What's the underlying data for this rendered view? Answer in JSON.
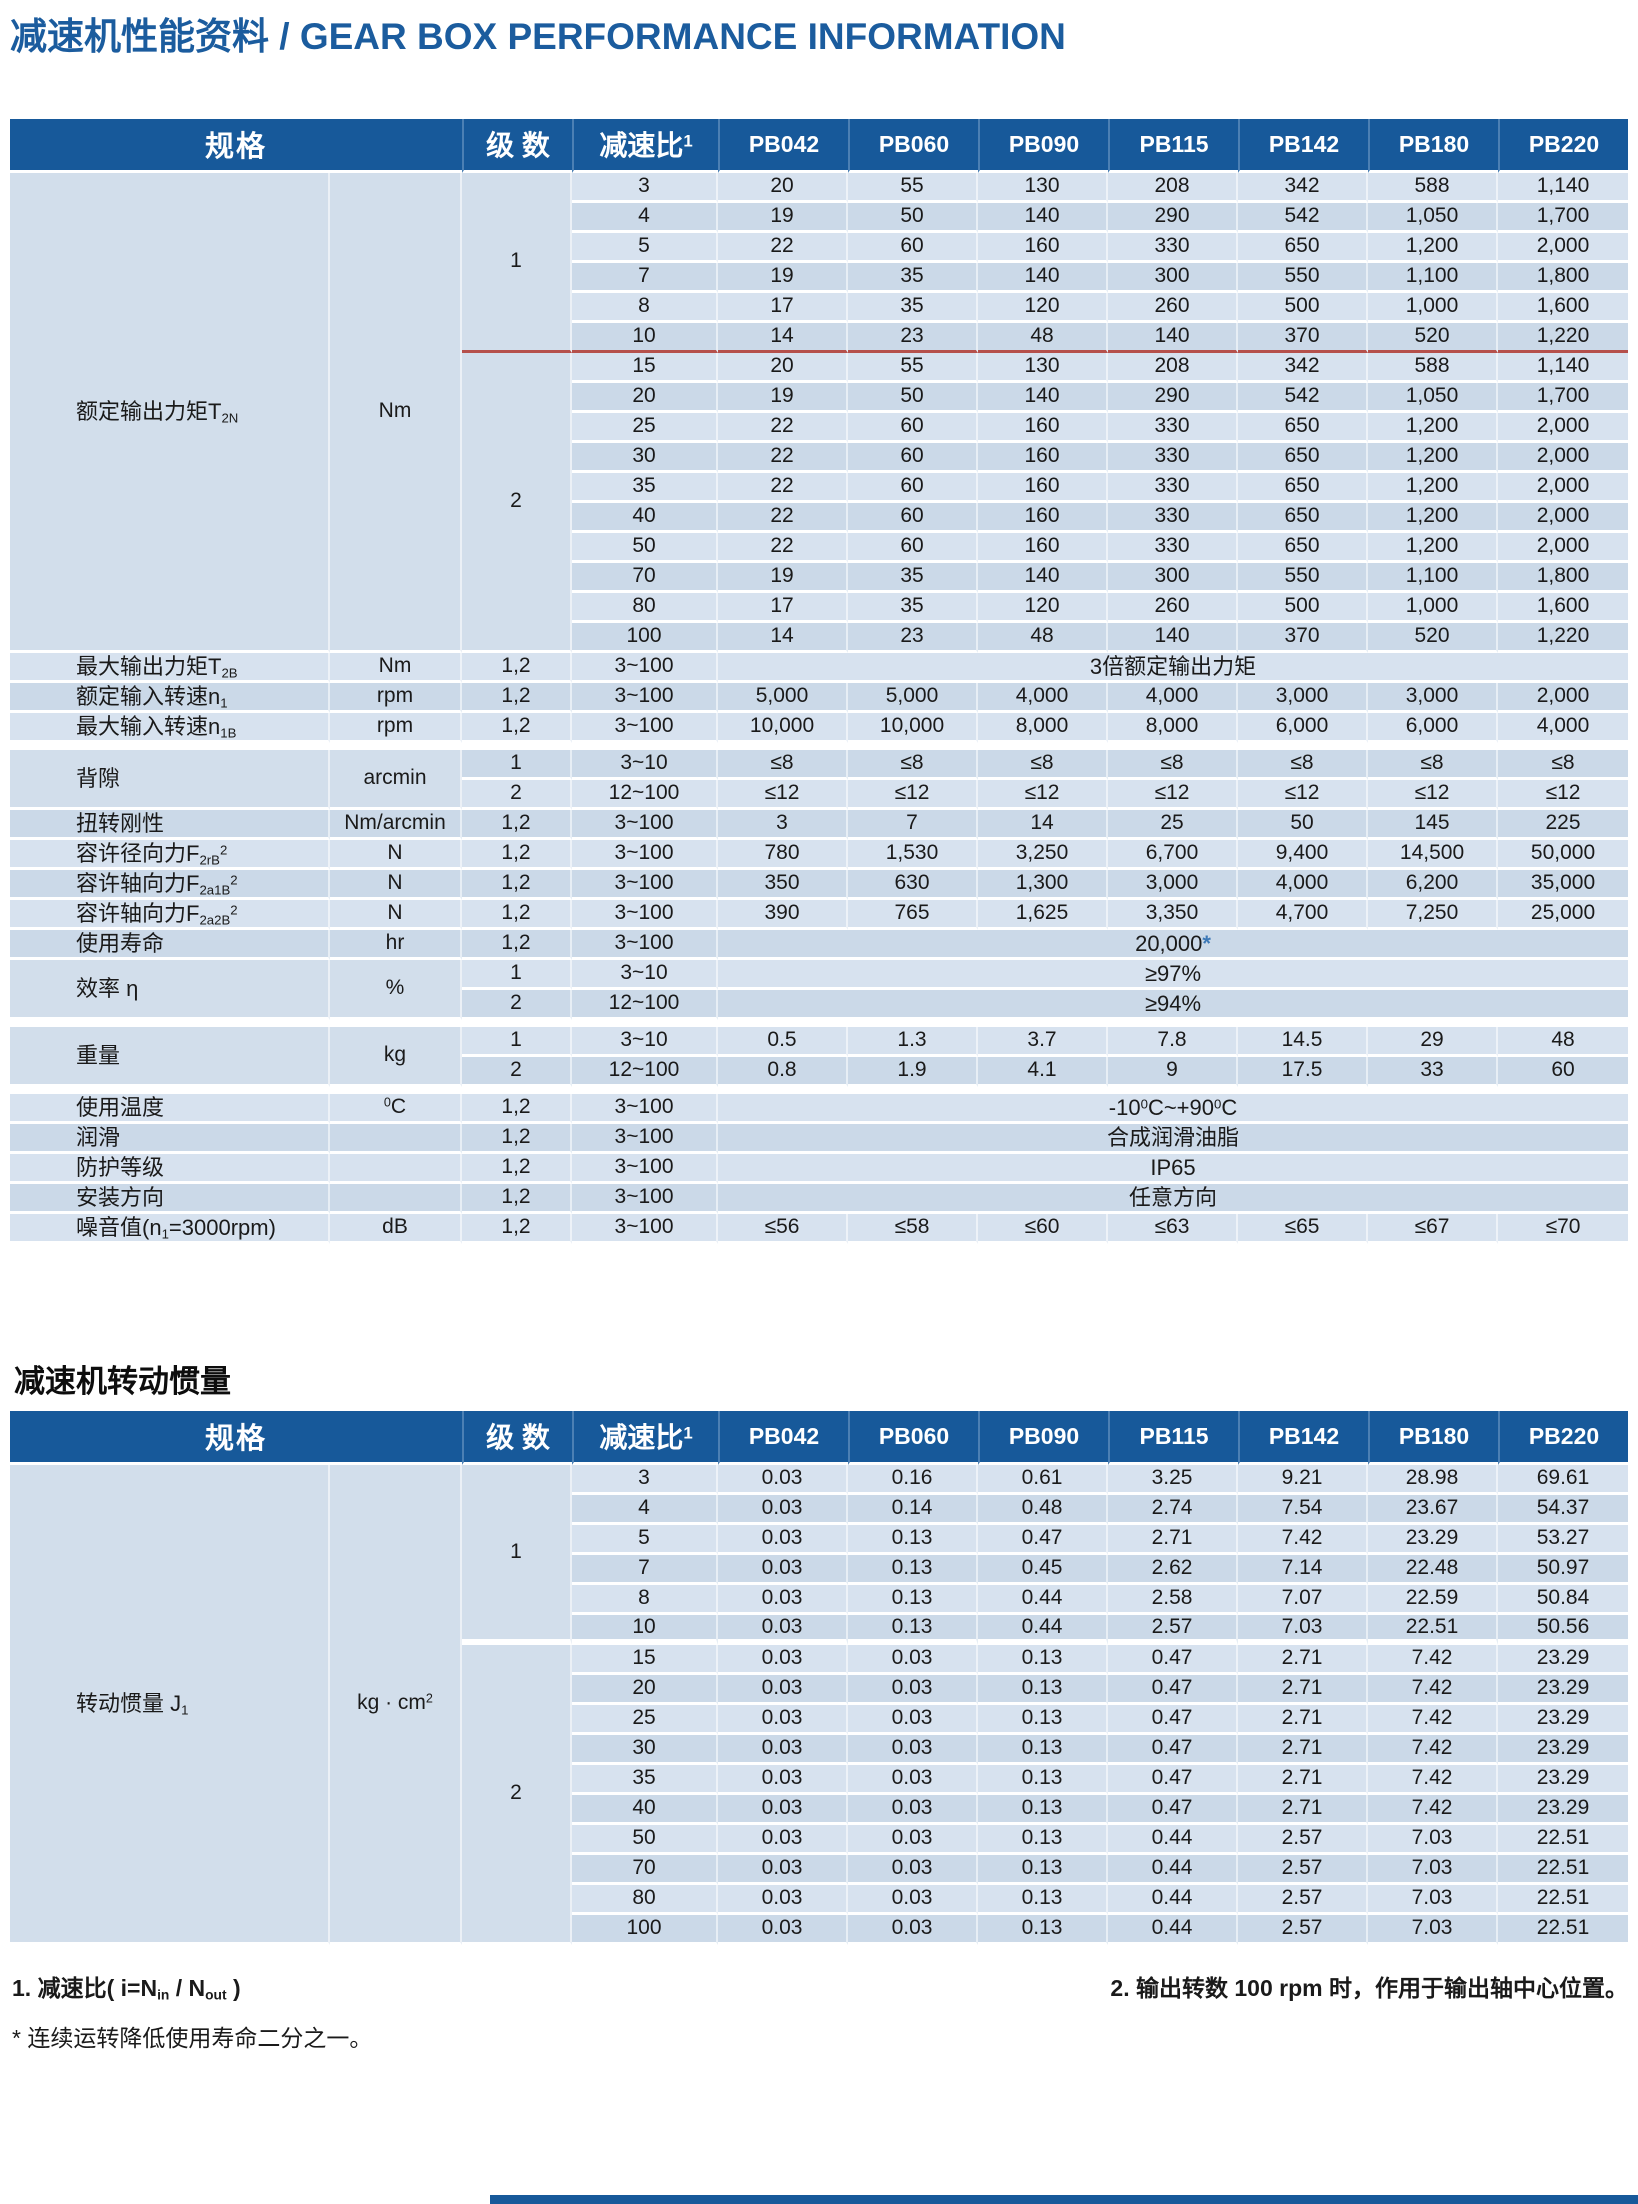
{
  "page": {
    "title": "减速机性能资料 / GEAR BOX PERFORMANCE INFORMATION"
  },
  "colors": {
    "header_blue": "#17599A",
    "title_blue": "#1B5C9E",
    "row_light": "#D7E2EF",
    "row_dark": "#CBD9E8",
    "panel_blue": "#D2DEEB",
    "red_divider": "#B5504B",
    "star_blue": "#3D79B7"
  },
  "columns": {
    "headers": [
      "规格",
      "级 数",
      "减速比^{1}",
      "PB042",
      "PB060",
      "PB090",
      "PB115",
      "PB142",
      "PB180",
      "PB220"
    ]
  },
  "performance_table": {
    "name": "gear-box-performance-table",
    "blocks": [
      {
        "type": "group",
        "param": "额定输出力矩T_{2N}",
        "unit": "Nm",
        "divider_after_stage": 0,
        "divider_class": "redsep",
        "stages": [
          {
            "label": "1",
            "rows": [
              {
                "ratio": "3",
                "values": [
                  "20",
                  "55",
                  "130",
                  "208",
                  "342",
                  "588",
                  "1,140"
                ]
              },
              {
                "ratio": "4",
                "values": [
                  "19",
                  "50",
                  "140",
                  "290",
                  "542",
                  "1,050",
                  "1,700"
                ]
              },
              {
                "ratio": "5",
                "values": [
                  "22",
                  "60",
                  "160",
                  "330",
                  "650",
                  "1,200",
                  "2,000"
                ]
              },
              {
                "ratio": "7",
                "values": [
                  "19",
                  "35",
                  "140",
                  "300",
                  "550",
                  "1,100",
                  "1,800"
                ]
              },
              {
                "ratio": "8",
                "values": [
                  "17",
                  "35",
                  "120",
                  "260",
                  "500",
                  "1,000",
                  "1,600"
                ]
              },
              {
                "ratio": "10",
                "values": [
                  "14",
                  "23",
                  "48",
                  "140",
                  "370",
                  "520",
                  "1,220"
                ]
              }
            ]
          },
          {
            "label": "2",
            "rows": [
              {
                "ratio": "15",
                "values": [
                  "20",
                  "55",
                  "130",
                  "208",
                  "342",
                  "588",
                  "1,140"
                ]
              },
              {
                "ratio": "20",
                "values": [
                  "19",
                  "50",
                  "140",
                  "290",
                  "542",
                  "1,050",
                  "1,700"
                ]
              },
              {
                "ratio": "25",
                "values": [
                  "22",
                  "60",
                  "160",
                  "330",
                  "650",
                  "1,200",
                  "2,000"
                ]
              },
              {
                "ratio": "30",
                "values": [
                  "22",
                  "60",
                  "160",
                  "330",
                  "650",
                  "1,200",
                  "2,000"
                ]
              },
              {
                "ratio": "35",
                "values": [
                  "22",
                  "60",
                  "160",
                  "330",
                  "650",
                  "1,200",
                  "2,000"
                ]
              },
              {
                "ratio": "40",
                "values": [
                  "22",
                  "60",
                  "160",
                  "330",
                  "650",
                  "1,200",
                  "2,000"
                ]
              },
              {
                "ratio": "50",
                "values": [
                  "22",
                  "60",
                  "160",
                  "330",
                  "650",
                  "1,200",
                  "2,000"
                ]
              },
              {
                "ratio": "70",
                "values": [
                  "19",
                  "35",
                  "140",
                  "300",
                  "550",
                  "1,100",
                  "1,800"
                ]
              },
              {
                "ratio": "80",
                "values": [
                  "17",
                  "35",
                  "120",
                  "260",
                  "500",
                  "1,000",
                  "1,600"
                ]
              },
              {
                "ratio": "100",
                "values": [
                  "14",
                  "23",
                  "48",
                  "140",
                  "370",
                  "520",
                  "1,220"
                ]
              }
            ]
          }
        ]
      },
      {
        "type": "row",
        "param": "最大输出力矩T_{2B}",
        "unit": "Nm",
        "stage": "1,2",
        "ratio": "3~100",
        "span": "3倍额定输出力矩"
      },
      {
        "type": "row",
        "param": "额定输入转速n_{1}",
        "unit": "rpm",
        "stage": "1,2",
        "ratio": "3~100",
        "values": [
          "5,000",
          "5,000",
          "4,000",
          "4,000",
          "3,000",
          "3,000",
          "2,000"
        ]
      },
      {
        "type": "row",
        "param": "最大输入转速n_{1B}",
        "unit": "rpm",
        "stage": "1,2",
        "ratio": "3~100",
        "values": [
          "10,000",
          "10,000",
          "8,000",
          "8,000",
          "6,000",
          "6,000",
          "4,000"
        ]
      },
      {
        "type": "gap"
      },
      {
        "type": "multi",
        "param": "背隙",
        "unit": "arcmin",
        "rows": [
          {
            "stage": "1",
            "ratio": "3~10",
            "values": [
              "≤8",
              "≤8",
              "≤8",
              "≤8",
              "≤8",
              "≤8",
              "≤8"
            ]
          },
          {
            "stage": "2",
            "ratio": "12~100",
            "values": [
              "≤12",
              "≤12",
              "≤12",
              "≤12",
              "≤12",
              "≤12",
              "≤12"
            ]
          }
        ]
      },
      {
        "type": "row",
        "param": "扭转刚性",
        "unit": "Nm/arcmin",
        "stage": "1,2",
        "ratio": "3~100",
        "values": [
          "3",
          "7",
          "14",
          "25",
          "50",
          "145",
          "225"
        ]
      },
      {
        "type": "row",
        "param": "容许径向力F_{2rB}^{2}",
        "unit": "N",
        "stage": "1,2",
        "ratio": "3~100",
        "values": [
          "780",
          "1,530",
          "3,250",
          "6,700",
          "9,400",
          "14,500",
          "50,000"
        ]
      },
      {
        "type": "row",
        "param": "容许轴向力F_{2a1B}^{2}",
        "unit": "N",
        "stage": "1,2",
        "ratio": "3~100",
        "values": [
          "350",
          "630",
          "1,300",
          "3,000",
          "4,000",
          "6,200",
          "35,000"
        ]
      },
      {
        "type": "row",
        "param": "容许轴向力F_{2a2B}^{2}",
        "unit": "N",
        "stage": "1,2",
        "ratio": "3~100",
        "values": [
          "390",
          "765",
          "1,625",
          "3,350",
          "4,700",
          "7,250",
          "25,000"
        ]
      },
      {
        "type": "row",
        "param": "使用寿命",
        "unit": "hr",
        "stage": "1,2",
        "ratio": "3~100",
        "span": "20,000*"
      },
      {
        "type": "multi",
        "param": "效率 η",
        "unit": "%",
        "rows": [
          {
            "stage": "1",
            "ratio": "3~10",
            "span": "≥97%"
          },
          {
            "stage": "2",
            "ratio": "12~100",
            "span": "≥94%"
          }
        ]
      },
      {
        "type": "gap"
      },
      {
        "type": "multi",
        "param": "重量",
        "unit": "kg",
        "rows": [
          {
            "stage": "1",
            "ratio": "3~10",
            "values": [
              "0.5",
              "1.3",
              "3.7",
              "7.8",
              "14.5",
              "29",
              "48"
            ]
          },
          {
            "stage": "2",
            "ratio": "12~100",
            "values": [
              "0.8",
              "1.9",
              "4.1",
              "9",
              "17.5",
              "33",
              "60"
            ]
          }
        ]
      },
      {
        "type": "gap"
      },
      {
        "type": "row",
        "param": "使用温度",
        "unit": "^{0}C",
        "stage": "1,2",
        "ratio": "3~100",
        "span": "-10^{0}C~+90^{0}C"
      },
      {
        "type": "row",
        "param": "润滑",
        "unit": "",
        "stage": "1,2",
        "ratio": "3~100",
        "span": "合成润滑油脂"
      },
      {
        "type": "row",
        "param": "防护等级",
        "unit": "",
        "stage": "1,2",
        "ratio": "3~100",
        "span": "IP65"
      },
      {
        "type": "row",
        "param": "安装方向",
        "unit": "",
        "stage": "1,2",
        "ratio": "3~100",
        "span": "任意方向"
      },
      {
        "type": "row",
        "param": "噪音值(n_{1}=3000rpm)",
        "unit": "dB",
        "stage": "1,2",
        "ratio": "3~100",
        "values": [
          "≤56",
          "≤58",
          "≤60",
          "≤63",
          "≤65",
          "≤67",
          "≤70"
        ]
      }
    ]
  },
  "inertia_table": {
    "name": "gear-box-inertia-table",
    "title": "减速机转动惯量",
    "blocks": [
      {
        "type": "group",
        "param": "转动惯量 J_{1}",
        "unit": "kg · cm^{2}",
        "divider_after_stage": 0,
        "divider_class": "stagesep",
        "stages": [
          {
            "label": "1",
            "rows": [
              {
                "ratio": "3",
                "values": [
                  "0.03",
                  "0.16",
                  "0.61",
                  "3.25",
                  "9.21",
                  "28.98",
                  "69.61"
                ]
              },
              {
                "ratio": "4",
                "values": [
                  "0.03",
                  "0.14",
                  "0.48",
                  "2.74",
                  "7.54",
                  "23.67",
                  "54.37"
                ]
              },
              {
                "ratio": "5",
                "values": [
                  "0.03",
                  "0.13",
                  "0.47",
                  "2.71",
                  "7.42",
                  "23.29",
                  "53.27"
                ]
              },
              {
                "ratio": "7",
                "values": [
                  "0.03",
                  "0.13",
                  "0.45",
                  "2.62",
                  "7.14",
                  "22.48",
                  "50.97"
                ]
              },
              {
                "ratio": "8",
                "values": [
                  "0.03",
                  "0.13",
                  "0.44",
                  "2.58",
                  "7.07",
                  "22.59",
                  "50.84"
                ]
              },
              {
                "ratio": "10",
                "values": [
                  "0.03",
                  "0.13",
                  "0.44",
                  "2.57",
                  "7.03",
                  "22.51",
                  "50.56"
                ]
              }
            ]
          },
          {
            "label": "2",
            "rows": [
              {
                "ratio": "15",
                "values": [
                  "0.03",
                  "0.03",
                  "0.13",
                  "0.47",
                  "2.71",
                  "7.42",
                  "23.29"
                ]
              },
              {
                "ratio": "20",
                "values": [
                  "0.03",
                  "0.03",
                  "0.13",
                  "0.47",
                  "2.71",
                  "7.42",
                  "23.29"
                ]
              },
              {
                "ratio": "25",
                "values": [
                  "0.03",
                  "0.03",
                  "0.13",
                  "0.47",
                  "2.71",
                  "7.42",
                  "23.29"
                ]
              },
              {
                "ratio": "30",
                "values": [
                  "0.03",
                  "0.03",
                  "0.13",
                  "0.47",
                  "2.71",
                  "7.42",
                  "23.29"
                ]
              },
              {
                "ratio": "35",
                "values": [
                  "0.03",
                  "0.03",
                  "0.13",
                  "0.47",
                  "2.71",
                  "7.42",
                  "23.29"
                ]
              },
              {
                "ratio": "40",
                "values": [
                  "0.03",
                  "0.03",
                  "0.13",
                  "0.47",
                  "2.71",
                  "7.42",
                  "23.29"
                ]
              },
              {
                "ratio": "50",
                "values": [
                  "0.03",
                  "0.03",
                  "0.13",
                  "0.44",
                  "2.57",
                  "7.03",
                  "22.51"
                ]
              },
              {
                "ratio": "70",
                "values": [
                  "0.03",
                  "0.03",
                  "0.13",
                  "0.44",
                  "2.57",
                  "7.03",
                  "22.51"
                ]
              },
              {
                "ratio": "80",
                "values": [
                  "0.03",
                  "0.03",
                  "0.13",
                  "0.44",
                  "2.57",
                  "7.03",
                  "22.51"
                ]
              },
              {
                "ratio": "100",
                "values": [
                  "0.03",
                  "0.03",
                  "0.13",
                  "0.44",
                  "2.57",
                  "7.03",
                  "22.51"
                ]
              }
            ]
          }
        ]
      }
    ]
  },
  "footnotes": {
    "note1": "1. 减速比( i=N_{in} / N_{out} )",
    "note1_star": "* 连续运转降低使用寿命二分之一。",
    "note2": "2. 输出转数  100 rpm  时，作用于输出轴中心位置。"
  }
}
